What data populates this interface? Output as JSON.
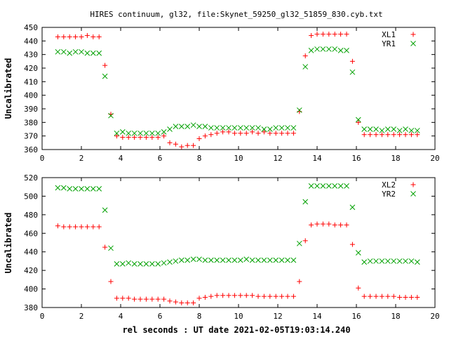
{
  "title": "HIRES continuum, gl32, file:Skynet_59250_gl32_51859_830.cyb.txt",
  "xlabel": "rel seconds : UT date 2021-02-05T19:03:14.240",
  "chart_data": [
    {
      "type": "scatter",
      "ylabel": "Uncalibrated",
      "xlim": [
        0,
        20
      ],
      "ylim": [
        360,
        450
      ],
      "xticks": [
        "0",
        "2",
        "4",
        "6",
        "8",
        "10",
        "12",
        "14",
        "16",
        "18",
        "20"
      ],
      "yticks": [
        "360",
        "370",
        "380",
        "390",
        "400",
        "410",
        "420",
        "430",
        "440",
        "450"
      ],
      "x": [
        0.8,
        1.1,
        1.4,
        1.7,
        2.0,
        2.3,
        2.6,
        2.9,
        3.2,
        3.5,
        3.8,
        4.1,
        4.4,
        4.7,
        5.0,
        5.3,
        5.6,
        5.9,
        6.2,
        6.5,
        6.8,
        7.1,
        7.4,
        7.7,
        8.0,
        8.3,
        8.6,
        8.9,
        9.2,
        9.5,
        9.8,
        10.1,
        10.4,
        10.7,
        11.0,
        11.3,
        11.6,
        11.9,
        12.2,
        12.5,
        12.8,
        13.1,
        13.4,
        13.7,
        14.0,
        14.3,
        14.6,
        14.9,
        15.2,
        15.5,
        15.8,
        16.1,
        16.4,
        16.7,
        17.0,
        17.3,
        17.6,
        17.9,
        18.2,
        18.5,
        18.8,
        19.1
      ],
      "legend_position": "top-right",
      "series": [
        {
          "name": "XL1",
          "color": "#ff0000",
          "marker": "plus",
          "values": [
            443,
            443,
            443,
            443,
            443,
            444,
            443,
            443,
            422,
            386,
            370,
            369,
            369,
            369,
            369,
            369,
            369,
            369,
            370,
            365,
            364,
            362,
            363,
            363,
            368,
            370,
            371,
            372,
            373,
            373,
            372,
            372,
            372,
            373,
            372,
            373,
            372,
            372,
            372,
            372,
            372,
            388,
            429,
            444,
            445,
            445,
            445,
            445,
            445,
            445,
            425,
            380,
            371,
            371,
            371,
            371,
            371,
            371,
            371,
            371,
            371,
            371
          ]
        },
        {
          "name": "YR1",
          "color": "#00a000",
          "marker": "cross",
          "values": [
            432,
            432,
            431,
            432,
            432,
            431,
            431,
            431,
            414,
            385,
            372,
            373,
            372,
            372,
            372,
            372,
            372,
            372,
            373,
            375,
            377,
            377,
            377,
            378,
            377,
            377,
            376,
            376,
            376,
            376,
            376,
            376,
            376,
            376,
            376,
            375,
            375,
            376,
            376,
            376,
            376,
            389,
            421,
            433,
            434,
            434,
            434,
            434,
            433,
            433,
            417,
            382,
            375,
            375,
            375,
            374,
            375,
            375,
            374,
            375,
            374,
            374
          ]
        }
      ]
    },
    {
      "type": "scatter",
      "ylabel": "Uncalibrated",
      "xlim": [
        0,
        20
      ],
      "ylim": [
        380,
        520
      ],
      "xticks": [
        "0",
        "2",
        "4",
        "6",
        "8",
        "10",
        "12",
        "14",
        "16",
        "18",
        "20"
      ],
      "yticks": [
        "380",
        "400",
        "420",
        "440",
        "460",
        "480",
        "500",
        "520"
      ],
      "x": [
        0.8,
        1.1,
        1.4,
        1.7,
        2.0,
        2.3,
        2.6,
        2.9,
        3.2,
        3.5,
        3.8,
        4.1,
        4.4,
        4.7,
        5.0,
        5.3,
        5.6,
        5.9,
        6.2,
        6.5,
        6.8,
        7.1,
        7.4,
        7.7,
        8.0,
        8.3,
        8.6,
        8.9,
        9.2,
        9.5,
        9.8,
        10.1,
        10.4,
        10.7,
        11.0,
        11.3,
        11.6,
        11.9,
        12.2,
        12.5,
        12.8,
        13.1,
        13.4,
        13.7,
        14.0,
        14.3,
        14.6,
        14.9,
        15.2,
        15.5,
        15.8,
        16.1,
        16.4,
        16.7,
        17.0,
        17.3,
        17.6,
        17.9,
        18.2,
        18.5,
        18.8,
        19.1
      ],
      "legend_position": "top-right",
      "series": [
        {
          "name": "XL2",
          "color": "#ff0000",
          "marker": "plus",
          "values": [
            468,
            467,
            467,
            467,
            467,
            467,
            467,
            467,
            445,
            408,
            390,
            390,
            390,
            389,
            389,
            389,
            389,
            389,
            389,
            387,
            386,
            385,
            385,
            385,
            390,
            391,
            392,
            393,
            393,
            393,
            393,
            393,
            393,
            393,
            392,
            392,
            392,
            392,
            392,
            392,
            392,
            408,
            452,
            469,
            470,
            470,
            470,
            469,
            469,
            469,
            448,
            401,
            392,
            392,
            392,
            392,
            392,
            392,
            391,
            391,
            391,
            391
          ]
        },
        {
          "name": "YR2",
          "color": "#00a000",
          "marker": "cross",
          "values": [
            509,
            509,
            508,
            508,
            508,
            508,
            508,
            508,
            485,
            444,
            427,
            427,
            428,
            427,
            427,
            427,
            427,
            427,
            428,
            429,
            430,
            431,
            431,
            432,
            432,
            431,
            431,
            431,
            431,
            431,
            431,
            431,
            432,
            431,
            431,
            431,
            431,
            431,
            431,
            431,
            431,
            449,
            494,
            511,
            511,
            511,
            511,
            511,
            511,
            511,
            488,
            439,
            429,
            430,
            430,
            430,
            430,
            430,
            430,
            430,
            430,
            429
          ]
        }
      ]
    }
  ]
}
